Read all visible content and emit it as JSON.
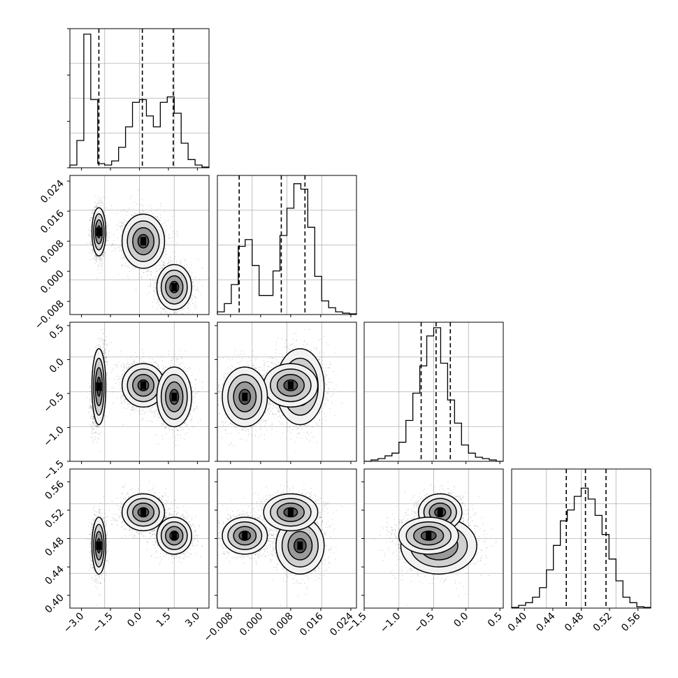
{
  "chart_data": {
    "type": "corner",
    "n_params": 4,
    "params": [
      {
        "range": [
          -3.6,
          3.6
        ],
        "ticks": [
          -3.0,
          -1.5,
          0.0,
          1.5,
          3.0
        ],
        "tick_labels": [
          "−3.0",
          "−1.5",
          "0.0",
          "1.5",
          "3.0"
        ],
        "quantiles": [
          -2.1,
          0.15,
          1.75
        ],
        "hist": {
          "edges_range": [
            -3.6,
            3.6
          ],
          "counts": [
            0.02,
            0.2,
            0.98,
            0.5,
            0.03,
            0.02,
            0.05,
            0.15,
            0.3,
            0.48,
            0.5,
            0.38,
            0.3,
            0.48,
            0.52,
            0.4,
            0.18,
            0.06,
            0.02,
            0.005
          ]
        }
      },
      {
        "range": [
          -0.0115,
          0.0255
        ],
        "ticks": [
          -0.008,
          0.0,
          0.008,
          0.016,
          0.024
        ],
        "tick_labels": [
          "−0.008",
          "0.000",
          "0.008",
          "0.016",
          "0.024"
        ],
        "quantiles": [
          -0.0057,
          0.0055,
          0.0118
        ],
        "hist": {
          "edges_range": [
            -0.0115,
            0.0255
          ],
          "counts": [
            0.02,
            0.08,
            0.22,
            0.5,
            0.55,
            0.36,
            0.14,
            0.14,
            0.32,
            0.58,
            0.78,
            0.96,
            0.92,
            0.64,
            0.28,
            0.1,
            0.05,
            0.02,
            0.01,
            0.005
          ]
        }
      },
      {
        "range": [
          -1.5,
          0.55
        ],
        "ticks": [
          -1.5,
          -1.0,
          -0.5,
          0.0,
          0.5
        ],
        "tick_labels": [
          "−1.5",
          "−1.0",
          "−0.5",
          "0.0",
          "0.5"
        ],
        "quantiles": [
          -0.66,
          -0.44,
          -0.23
        ],
        "hist": {
          "edges_range": [
            -1.5,
            0.55
          ],
          "counts": [
            0.0,
            0.01,
            0.02,
            0.04,
            0.06,
            0.14,
            0.3,
            0.5,
            0.7,
            0.92,
            0.98,
            0.72,
            0.45,
            0.28,
            0.12,
            0.06,
            0.03,
            0.02,
            0.01,
            0.0
          ]
        }
      },
      {
        "range": [
          0.382,
          0.578
        ],
        "ticks": [
          0.4,
          0.44,
          0.48,
          0.52,
          0.56
        ],
        "tick_labels": [
          "0.40",
          "0.44",
          "0.48",
          "0.52",
          "0.56"
        ],
        "quantiles": [
          0.459,
          0.486,
          0.515
        ],
        "hist": {
          "edges_range": [
            0.382,
            0.578
          ],
          "counts": [
            0.005,
            0.02,
            0.04,
            0.08,
            0.15,
            0.28,
            0.46,
            0.64,
            0.72,
            0.82,
            0.88,
            0.8,
            0.68,
            0.54,
            0.36,
            0.2,
            0.08,
            0.04,
            0.01,
            0.005
          ]
        }
      }
    ],
    "clusters": [
      {
        "weight": 0.34,
        "mean": [
          -2.1,
          0.0105,
          -0.4,
          0.47
        ],
        "std": [
          0.18,
          0.0032,
          0.28,
          0.02
        ],
        "corr": {
          "0_2": 0.5
        }
      },
      {
        "weight": 0.33,
        "mean": [
          0.2,
          0.008,
          -0.38,
          0.517
        ],
        "std": [
          0.55,
          0.0036,
          0.16,
          0.013
        ]
      },
      {
        "weight": 0.33,
        "mean": [
          1.8,
          -0.0042,
          -0.55,
          0.484
        ],
        "std": [
          0.45,
          0.003,
          0.22,
          0.013
        ]
      }
    ],
    "grid": true,
    "hist_color": "#000000",
    "scatter_color": "#000000"
  }
}
